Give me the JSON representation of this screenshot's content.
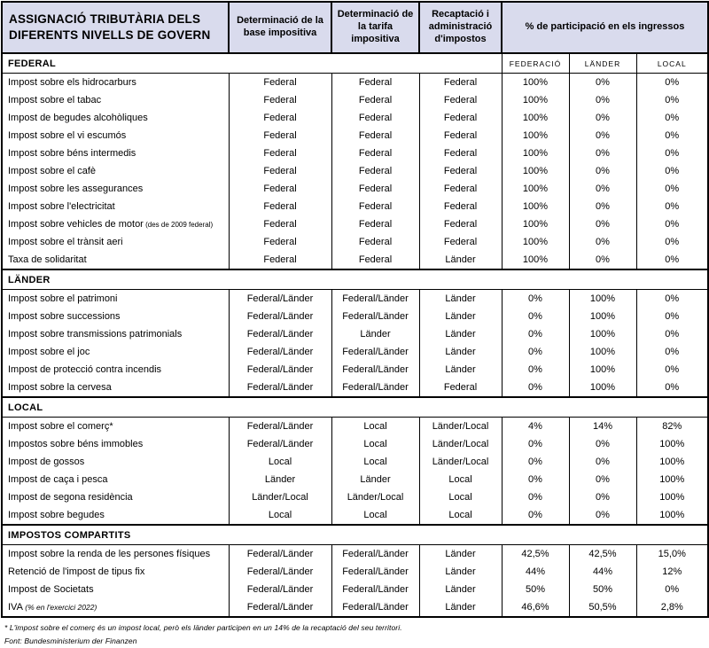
{
  "colors": {
    "header_bg": "#d9dbed",
    "border": "#000000",
    "text": "#000000"
  },
  "header": {
    "title": "ASSIGNACIÓ TRIBUTÀRIA DELS DIFERENTS NIVELLS DE GOVERN",
    "columns": {
      "base": "Determinació de la base impositiva",
      "tarifa": "Determinació de la tarifa impositiva",
      "recaptacio": "Recaptació i administració d'impostos",
      "participacio": "% de participació en els ingressos"
    },
    "subcolumns": [
      "FEDERACIÓ",
      "LÄNDER",
      "LOCAL"
    ]
  },
  "sections": [
    {
      "label": "FEDERAL",
      "rows": [
        {
          "name": "Impost sobre els hidrocarburs",
          "base": "Federal",
          "tarifa": "Federal",
          "recaptacio": "Federal",
          "federacio": "100%",
          "lander": "0%",
          "local": "0%"
        },
        {
          "name": "Impost sobre el tabac",
          "base": "Federal",
          "tarifa": "Federal",
          "recaptacio": "Federal",
          "federacio": "100%",
          "lander": "0%",
          "local": "0%"
        },
        {
          "name": "Impost de begudes alcohòliques",
          "base": "Federal",
          "tarifa": "Federal",
          "recaptacio": "Federal",
          "federacio": "100%",
          "lander": "0%",
          "local": "0%"
        },
        {
          "name": "Impost sobre el vi escumós",
          "base": "Federal",
          "tarifa": "Federal",
          "recaptacio": "Federal",
          "federacio": "100%",
          "lander": "0%",
          "local": "0%"
        },
        {
          "name": "Impost sobre béns intermedis",
          "base": "Federal",
          "tarifa": "Federal",
          "recaptacio": "Federal",
          "federacio": "100%",
          "lander": "0%",
          "local": "0%"
        },
        {
          "name": "Impost sobre el cafè",
          "base": "Federal",
          "tarifa": "Federal",
          "recaptacio": "Federal",
          "federacio": "100%",
          "lander": "0%",
          "local": "0%"
        },
        {
          "name": "Impost sobre les assegurances",
          "base": "Federal",
          "tarifa": "Federal",
          "recaptacio": "Federal",
          "federacio": "100%",
          "lander": "0%",
          "local": "0%"
        },
        {
          "name": "Impost sobre l'electricitat",
          "base": "Federal",
          "tarifa": "Federal",
          "recaptacio": "Federal",
          "federacio": "100%",
          "lander": "0%",
          "local": "0%"
        },
        {
          "name": "Impost sobre vehicles de motor",
          "note": "(des de 2009 federal)",
          "base": "Federal",
          "tarifa": "Federal",
          "recaptacio": "Federal",
          "federacio": "100%",
          "lander": "0%",
          "local": "0%"
        },
        {
          "name": "Impost sobre el trànsit aeri",
          "base": "Federal",
          "tarifa": "Federal",
          "recaptacio": "Federal",
          "federacio": "100%",
          "lander": "0%",
          "local": "0%"
        },
        {
          "name": "Taxa de solidaritat",
          "base": "Federal",
          "tarifa": "Federal",
          "recaptacio": "Länder",
          "federacio": "100%",
          "lander": "0%",
          "local": "0%"
        }
      ]
    },
    {
      "label": "LÄNDER",
      "rows": [
        {
          "name": "Impost sobre el patrimoni",
          "base": "Federal/Länder",
          "tarifa": "Federal/Länder",
          "recaptacio": "Länder",
          "federacio": "0%",
          "lander": "100%",
          "local": "0%"
        },
        {
          "name": "Impost sobre successions",
          "base": "Federal/Länder",
          "tarifa": "Federal/Länder",
          "recaptacio": "Länder",
          "federacio": "0%",
          "lander": "100%",
          "local": "0%"
        },
        {
          "name": "Impost sobre transmissions patrimonials",
          "base": "Federal/Länder",
          "tarifa": "Länder",
          "recaptacio": "Länder",
          "federacio": "0%",
          "lander": "100%",
          "local": "0%"
        },
        {
          "name": "Impost sobre el joc",
          "base": "Federal/Länder",
          "tarifa": "Federal/Länder",
          "recaptacio": "Länder",
          "federacio": "0%",
          "lander": "100%",
          "local": "0%"
        },
        {
          "name": "Impost de protecció contra incendis",
          "base": "Federal/Länder",
          "tarifa": "Federal/Länder",
          "recaptacio": "Länder",
          "federacio": "0%",
          "lander": "100%",
          "local": "0%"
        },
        {
          "name": "Impost sobre la cervesa",
          "base": "Federal/Länder",
          "tarifa": "Federal/Länder",
          "recaptacio": "Federal",
          "federacio": "0%",
          "lander": "100%",
          "local": "0%"
        }
      ]
    },
    {
      "label": "LOCAL",
      "rows": [
        {
          "name": "Impost sobre el comerç*",
          "base": "Federal/Länder",
          "tarifa": "Local",
          "recaptacio": "Länder/Local",
          "federacio": "4%",
          "lander": "14%",
          "local": "82%"
        },
        {
          "name": "Impostos sobre béns immobles",
          "base": "Federal/Länder",
          "tarifa": "Local",
          "recaptacio": "Länder/Local",
          "federacio": "0%",
          "lander": "0%",
          "local": "100%"
        },
        {
          "name": "Impost de gossos",
          "base": "Local",
          "tarifa": "Local",
          "recaptacio": "Länder/Local",
          "federacio": "0%",
          "lander": "0%",
          "local": "100%"
        },
        {
          "name": "Impost de caça i pesca",
          "base": "Länder",
          "tarifa": "Länder",
          "recaptacio": "Local",
          "federacio": "0%",
          "lander": "0%",
          "local": "100%"
        },
        {
          "name": "Impost de segona residència",
          "base": "Länder/Local",
          "tarifa": "Länder/Local",
          "recaptacio": "Local",
          "federacio": "0%",
          "lander": "0%",
          "local": "100%"
        },
        {
          "name": "Impost sobre begudes",
          "base": "Local",
          "tarifa": "Local",
          "recaptacio": "Local",
          "federacio": "0%",
          "lander": "0%",
          "local": "100%"
        }
      ]
    },
    {
      "label": "IMPOSTOS COMPARTITS",
      "rows": [
        {
          "name": "Impost sobre la renda de les persones físiques",
          "base": "Federal/Länder",
          "tarifa": "Federal/Länder",
          "recaptacio": "Länder",
          "federacio": "42,5%",
          "lander": "42,5%",
          "local": "15,0%"
        },
        {
          "name": "Retenció de l'impost de tipus fix",
          "base": "Federal/Länder",
          "tarifa": "Federal/Länder",
          "recaptacio": "Länder",
          "federacio": "44%",
          "lander": "44%",
          "local": "12%"
        },
        {
          "name": "Impost de Societats",
          "base": "Federal/Länder",
          "tarifa": "Federal/Länder",
          "recaptacio": "Länder",
          "federacio": "50%",
          "lander": "50%",
          "local": "0%"
        },
        {
          "name": "IVA",
          "note": "(% en l'exercici 2022)",
          "note_italic": true,
          "base": "Federal/Länder",
          "tarifa": "Federal/Länder",
          "recaptacio": "Länder",
          "federacio": "46,6%",
          "lander": "50,5%",
          "local": "2,8%"
        }
      ]
    }
  ],
  "footnotes": [
    "* L'impost sobre el comerç és un impost local, però els länder participen en un 14% de la recaptació del seu territori.",
    "Font: Bundesministerium der Finanzen"
  ]
}
